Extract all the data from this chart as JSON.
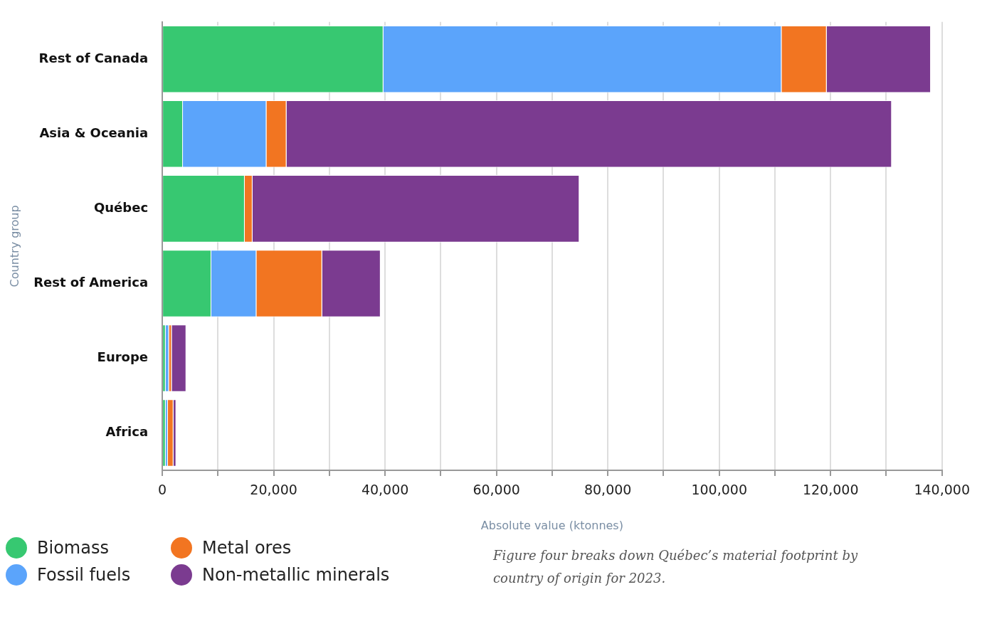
{
  "chart_data": {
    "type": "bar",
    "orientation": "horizontal",
    "stacked": true,
    "categories": [
      "Rest of Canada",
      "Asia & Oceania",
      "Québec",
      "Rest of America",
      "Europe",
      "Africa"
    ],
    "series": [
      {
        "name": "Biomass",
        "color": "#37c871",
        "values": [
          39700,
          3700,
          14800,
          8800,
          600,
          600
        ]
      },
      {
        "name": "Fossil fuels",
        "color": "#5ba4fb",
        "values": [
          71500,
          15000,
          0,
          8100,
          600,
          400
        ]
      },
      {
        "name": "Metal ores",
        "color": "#f27521",
        "values": [
          8100,
          3600,
          1400,
          11800,
          500,
          1000
        ]
      },
      {
        "name": "Non-metallic minerals",
        "color": "#7b3b90",
        "values": [
          18700,
          108700,
          58700,
          10500,
          2600,
          500
        ]
      }
    ],
    "xlim": [
      0,
      140000
    ],
    "xticks": [
      0,
      {
        "value": 10000,
        "label": null
      },
      {
        "value": 20000,
        "label": "20,000"
      },
      {
        "value": 30000,
        "label": null
      },
      {
        "value": 40000,
        "label": "40,000"
      },
      {
        "value": 50000,
        "label": null
      },
      {
        "value": 60000,
        "label": "60,000"
      },
      {
        "value": 70000,
        "label": null
      },
      {
        "value": 80000,
        "label": "80,000"
      },
      {
        "value": 90000,
        "label": null
      },
      {
        "value": 100000,
        "label": "100,000"
      },
      {
        "value": 110000,
        "label": null
      },
      {
        "value": 120000,
        "label": "120,000"
      },
      {
        "value": 130000,
        "label": null
      },
      {
        "value": 140000,
        "label": "140,000"
      }
    ],
    "xlabel": "Absolute value (ktonnes)",
    "ylabel": "Country group",
    "grid": "x",
    "legend": "bottom left",
    "annotations": [
      "Figure four breaks down Québec’s material footprint by country of origin for 2023."
    ]
  }
}
